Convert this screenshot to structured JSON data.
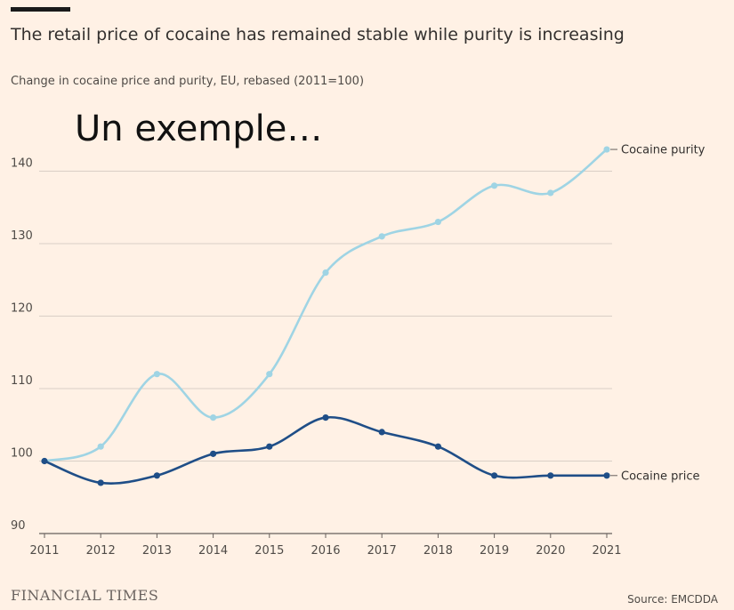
{
  "header": {
    "title": "The retail price of cocaine has remained stable while purity is increasing",
    "subtitle": "Change in cocaine price and purity, EU, rebased (2011=100)"
  },
  "overlay_text": "Un exemple…",
  "footer": {
    "branding": "FINANCIAL TIMES",
    "source": "Source: EMCDDA"
  },
  "colors": {
    "background": "#FFF1E5",
    "purity": "#9FD4E4",
    "price": "#1F4E87",
    "grid": "#D9CFC6",
    "axis": "#66605C"
  },
  "chart_data": {
    "type": "line",
    "x": [
      "2011",
      "2012",
      "2013",
      "2014",
      "2015",
      "2016",
      "2017",
      "2018",
      "2019",
      "2020",
      "2021"
    ],
    "series": [
      {
        "name": "Cocaine purity",
        "values": [
          100,
          102,
          112,
          106,
          112,
          126,
          131,
          133,
          138,
          137,
          143
        ]
      },
      {
        "name": "Cocaine price",
        "values": [
          100,
          97,
          98,
          101,
          102,
          106,
          104,
          102,
          98,
          98,
          98
        ]
      }
    ],
    "ylim": [
      90,
      145
    ],
    "yticks": [
      90,
      100,
      110,
      120,
      130,
      140
    ],
    "grid": true,
    "legend": "direct labels at line ends"
  }
}
